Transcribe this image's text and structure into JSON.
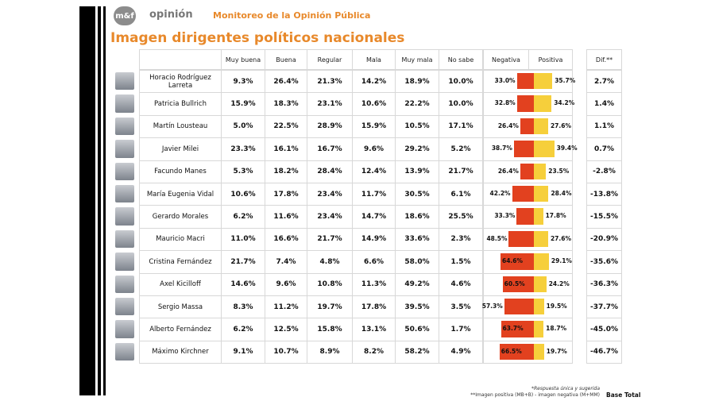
{
  "header": {
    "logo": "m&f",
    "brand": "opinión",
    "subtitle": "Monitoreo de la Opinión Pública"
  },
  "title": "Imagen dirigentes políticos nacionales",
  "table": {
    "columns": [
      "Muy buena",
      "Buena",
      "Regular",
      "Mala",
      "Muy mala",
      "No sabe"
    ],
    "bar_columns": [
      "Negativa",
      "Positiva"
    ],
    "dif_column": "Dif.**",
    "negative_color": "#e2411f",
    "positive_color": "#f6cf3b",
    "rows": [
      {
        "name": "Horacio Rodríguez Larreta",
        "values": [
          "9.3%",
          "26.4%",
          "21.3%",
          "14.2%",
          "18.9%",
          "10.0%"
        ],
        "negativa": {
          "value": 33.0,
          "label": "33.0%"
        },
        "positiva": {
          "value": 35.7,
          "label": "35.7%"
        },
        "dif": "2.7%"
      },
      {
        "name": "Patricia Bullrich",
        "values": [
          "15.9%",
          "18.3%",
          "23.1%",
          "10.6%",
          "22.2%",
          "10.0%"
        ],
        "negativa": {
          "value": 32.8,
          "label": "32.8%"
        },
        "positiva": {
          "value": 34.2,
          "label": "34.2%"
        },
        "dif": "1.4%"
      },
      {
        "name": "Martín Lousteau",
        "values": [
          "5.0%",
          "22.5%",
          "28.9%",
          "15.9%",
          "10.5%",
          "17.1%"
        ],
        "negativa": {
          "value": 26.4,
          "label": "26.4%"
        },
        "positiva": {
          "value": 27.6,
          "label": "27.6%"
        },
        "dif": "1.1%"
      },
      {
        "name": "Javier Milei",
        "values": [
          "23.3%",
          "16.1%",
          "16.7%",
          "9.6%",
          "29.2%",
          "5.2%"
        ],
        "negativa": {
          "value": 38.7,
          "label": "38.7%"
        },
        "positiva": {
          "value": 39.4,
          "label": "39.4%"
        },
        "dif": "0.7%"
      },
      {
        "name": "Facundo Manes",
        "values": [
          "5.3%",
          "18.2%",
          "28.4%",
          "12.4%",
          "13.9%",
          "21.7%"
        ],
        "negativa": {
          "value": 26.4,
          "label": "26.4%"
        },
        "positiva": {
          "value": 23.5,
          "label": "23.5%"
        },
        "dif": "-2.8%"
      },
      {
        "name": "María Eugenia Vidal",
        "values": [
          "10.6%",
          "17.8%",
          "23.4%",
          "11.7%",
          "30.5%",
          "6.1%"
        ],
        "negativa": {
          "value": 42.2,
          "label": "42.2%"
        },
        "positiva": {
          "value": 28.4,
          "label": "28.4%"
        },
        "dif": "-13.8%"
      },
      {
        "name": "Gerardo Morales",
        "values": [
          "6.2%",
          "11.6%",
          "23.4%",
          "14.7%",
          "18.6%",
          "25.5%"
        ],
        "negativa": {
          "value": 33.3,
          "label": "33.3%"
        },
        "positiva": {
          "value": 17.8,
          "label": "17.8%"
        },
        "dif": "-15.5%"
      },
      {
        "name": "Mauricio Macri",
        "values": [
          "11.0%",
          "16.6%",
          "21.7%",
          "14.9%",
          "33.6%",
          "2.3%"
        ],
        "negativa": {
          "value": 48.5,
          "label": "48.5%"
        },
        "positiva": {
          "value": 27.6,
          "label": "27.6%"
        },
        "dif": "-20.9%"
      },
      {
        "name": "Cristina Fernández",
        "values": [
          "21.7%",
          "7.4%",
          "4.8%",
          "6.6%",
          "58.0%",
          "1.5%"
        ],
        "negativa": {
          "value": 64.6,
          "label": "64.6%"
        },
        "positiva": {
          "value": 29.1,
          "label": "29.1%"
        },
        "dif": "-35.6%"
      },
      {
        "name": "Axel Kicilloff",
        "values": [
          "14.6%",
          "9.6%",
          "10.8%",
          "11.3%",
          "49.2%",
          "4.6%"
        ],
        "negativa": {
          "value": 60.5,
          "label": "60.5%"
        },
        "positiva": {
          "value": 24.2,
          "label": "24.2%"
        },
        "dif": "-36.3%"
      },
      {
        "name": "Sergio Massa",
        "values": [
          "8.3%",
          "11.2%",
          "19.7%",
          "17.8%",
          "39.5%",
          "3.5%"
        ],
        "negativa": {
          "value": 57.3,
          "label": "57.3%"
        },
        "positiva": {
          "value": 19.5,
          "label": "19.5%"
        },
        "dif": "-37.7%"
      },
      {
        "name": "Alberto Fernández",
        "values": [
          "6.2%",
          "12.5%",
          "15.8%",
          "13.1%",
          "50.6%",
          "1.7%"
        ],
        "negativa": {
          "value": 63.7,
          "label": "63.7%"
        },
        "positiva": {
          "value": 18.7,
          "label": "18.7%"
        },
        "dif": "-45.0%"
      },
      {
        "name": "Máximo Kirchner",
        "values": [
          "9.1%",
          "10.7%",
          "8.9%",
          "8.2%",
          "58.2%",
          "4.9%"
        ],
        "negativa": {
          "value": 66.5,
          "label": "66.5%"
        },
        "positiva": {
          "value": 19.7,
          "label": "19.7%"
        },
        "dif": "-46.7%"
      }
    ]
  },
  "footnotes": [
    "*Respuesta única y sugerida",
    "**Imagen positiva (MB+B) - imagen negativa (M+MM)"
  ],
  "base": "Base Total"
}
